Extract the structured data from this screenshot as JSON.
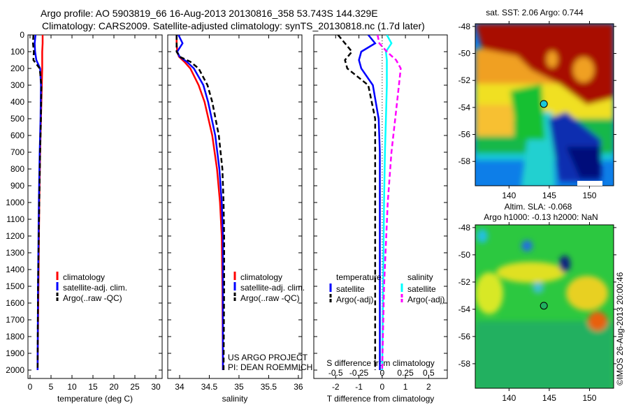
{
  "title_line1": "Argo profile: AO 5903819_66 16-Aug-2013 20130816_358 53.743S 144.329E",
  "title_line2": "Climatology: CARS2009. Satellite-adjusted climatology: synTS_20130818.nc (1.7d later)",
  "colors": {
    "climatology": "#ff0000",
    "satellite": "#0000ff",
    "argo": "#000000",
    "s_satellite": "#00ffff",
    "s_argo": "#ff00ff"
  },
  "depth_axis": {
    "ticks": [
      0,
      100,
      200,
      300,
      400,
      500,
      600,
      700,
      800,
      900,
      1000,
      1100,
      1200,
      1300,
      1400,
      1500,
      1600,
      1700,
      1800,
      1900,
      2000
    ],
    "ylim": [
      0,
      2050
    ]
  },
  "chart_data": [
    {
      "type": "line",
      "xlabel": "temperature (deg C)",
      "ylabel": "",
      "xlim": [
        -0.5,
        31.5
      ],
      "xticks": [
        0,
        5,
        10,
        15,
        20,
        25,
        30
      ],
      "legend": [
        "climatology",
        "satellite-adj. clim.",
        "Argo(..raw -QC)"
      ],
      "depth": [
        0,
        50,
        100,
        150,
        200,
        300,
        500,
        700,
        1000,
        1500,
        2000
      ],
      "series": [
        {
          "name": "climatology",
          "values": [
            3.0,
            3.0,
            2.9,
            2.9,
            2.9,
            2.8,
            2.6,
            2.4,
            2.2,
            2.0,
            1.8
          ]
        },
        {
          "name": "satellite-adj. clim.",
          "values": [
            1.3,
            1.1,
            1.2,
            1.5,
            2.4,
            2.6,
            2.5,
            2.3,
            2.1,
            1.9,
            1.8
          ]
        },
        {
          "name": "Argo(..raw -QC)",
          "values": [
            0.8,
            0.7,
            0.9,
            0.8,
            2.3,
            2.7,
            2.6,
            2.4,
            2.2,
            1.9,
            1.8
          ]
        }
      ]
    },
    {
      "type": "line",
      "xlabel": "salinity",
      "ylabel": "",
      "xlim": [
        33.8,
        36.06
      ],
      "xticks": [
        34,
        34.5,
        35,
        35.5,
        36
      ],
      "legend": [
        "climatology",
        "satellite-adj. clim.",
        "Argo(..raw -QC)"
      ],
      "annotation": [
        "US ARGO PROJECT",
        "PI: DEAN ROEMMICH"
      ],
      "depth": [
        0,
        50,
        100,
        130,
        160,
        200,
        300,
        400,
        600,
        800,
        1000,
        1200,
        1500,
        2000
      ],
      "series": [
        {
          "name": "climatology",
          "values": [
            33.95,
            33.95,
            33.96,
            33.99,
            34.08,
            34.18,
            34.32,
            34.42,
            34.55,
            34.63,
            34.68,
            34.71,
            34.72,
            34.73
          ]
        },
        {
          "name": "satellite-adj. clim.",
          "values": [
            33.98,
            34.05,
            33.96,
            34.0,
            34.12,
            34.24,
            34.4,
            34.48,
            34.6,
            34.67,
            34.71,
            34.73,
            34.73,
            34.73
          ]
        },
        {
          "name": "Argo(..raw -QC)",
          "values": [
            33.95,
            33.95,
            33.95,
            34.0,
            34.18,
            34.32,
            34.47,
            34.55,
            34.66,
            34.72,
            34.74,
            34.75,
            34.75,
            34.74
          ]
        }
      ]
    },
    {
      "type": "line",
      "xlabel": "T difference from climatology",
      "xlabel2": "S difference from climatology",
      "xlim": [
        -2.94,
        2.8
      ],
      "xticks": [
        -2,
        -1,
        0,
        1,
        2
      ],
      "s_xlim": [
        -0.735,
        0.7
      ],
      "s_xticks": [
        "-0.5",
        "-0.25",
        "0",
        "0.25",
        "0.5"
      ],
      "legend_titles": [
        "temperature",
        "salinity"
      ],
      "legend": [
        "satellite",
        "Argo(-adj)",
        "satellite",
        "Argo(-adj)"
      ],
      "depth": [
        0,
        50,
        100,
        150,
        200,
        300,
        500,
        700,
        1000,
        1500,
        2000
      ],
      "series": [
        {
          "name": "T satellite",
          "axis": "T",
          "values": [
            -0.6,
            -0.3,
            -0.9,
            -1.0,
            -0.9,
            -0.4,
            -0.15,
            -0.1,
            -0.1,
            -0.1,
            -0.1
          ]
        },
        {
          "name": "T Argo(-adj)",
          "axis": "T",
          "values": [
            -1.9,
            -1.6,
            -1.3,
            -1.6,
            -1.5,
            -0.6,
            -0.3,
            -0.3,
            -0.3,
            -0.3,
            -0.3
          ]
        },
        {
          "name": "S satellite",
          "axis": "S",
          "values": [
            0.05,
            0.1,
            0.04,
            0.05,
            0.05,
            0.05,
            0.04,
            0.03,
            0.02,
            0.01,
            0.0
          ]
        },
        {
          "name": "S Argo(-adj)",
          "axis": "S",
          "values": [
            -0.05,
            -0.03,
            0.05,
            0.15,
            0.2,
            0.18,
            0.14,
            0.1,
            0.06,
            0.02,
            0.0
          ]
        }
      ]
    }
  ],
  "map_sst": {
    "title": "sat. SST: 2.06 Argo: 0.744",
    "yticks": [
      "-48",
      "-50",
      "-52",
      "-54",
      "-56",
      "-58"
    ],
    "xticks": [
      "140",
      "145",
      "150"
    ],
    "argo_lon": 144.33,
    "argo_lat": -53.74
  },
  "map_sla": {
    "title1": "Altim. SLA: -0.068",
    "title2": "Argo h1000: -0.13 h2000: NaN",
    "yticks": [
      "-48",
      "-50",
      "-52",
      "-54",
      "-56",
      "-58"
    ],
    "xticks": [
      "140",
      "145",
      "150"
    ],
    "argo_lon": 144.33,
    "argo_lat": -53.74
  },
  "credit": "©IMOS 26-Aug-2013 20:00:46"
}
